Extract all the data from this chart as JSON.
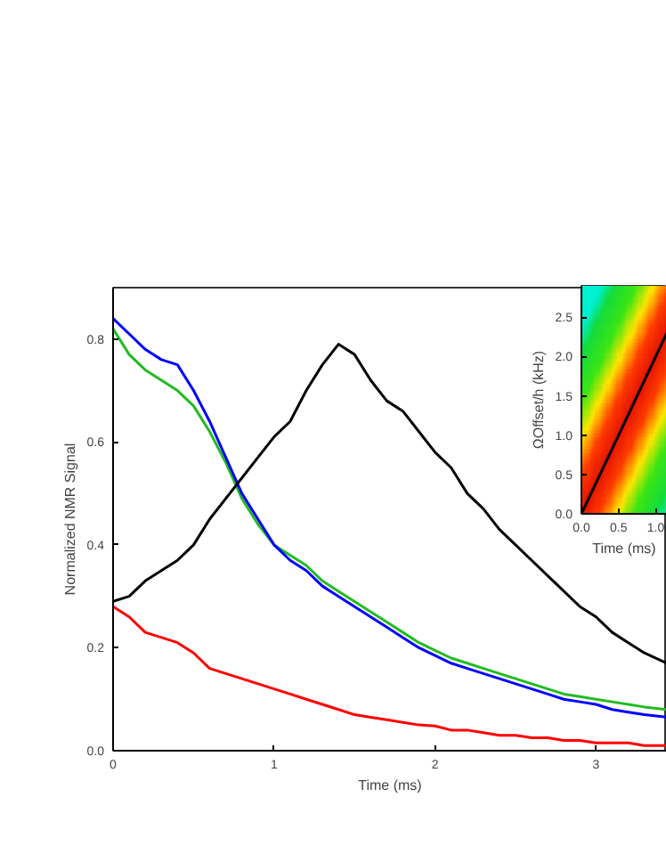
{
  "chart_data": [
    {
      "type": "line",
      "xlabel": "Time (ms)",
      "ylabel": "Normalized NMR Signal",
      "xlim": [
        0,
        3.44
      ],
      "ylim": [
        0,
        0.9
      ],
      "xticks": [
        0,
        1,
        2,
        3
      ],
      "yticks": [
        {
          "value": 0,
          "label": "0.0"
        },
        {
          "value": 0.2,
          "label": "0.2"
        },
        {
          "value": 0.4,
          "label": "0.4"
        },
        {
          "value": 0.6,
          "label": "0.6"
        },
        {
          "value": 0.8,
          "label": "0.8"
        }
      ],
      "grid": false,
      "x": [
        0,
        0.1,
        0.2,
        0.3,
        0.4,
        0.5,
        0.6,
        0.7,
        0.8,
        0.9,
        1.0,
        1.1,
        1.2,
        1.3,
        1.4,
        1.5,
        1.6,
        1.7,
        1.8,
        1.9,
        2.0,
        2.1,
        2.2,
        2.3,
        2.4,
        2.5,
        2.6,
        2.7,
        2.8,
        2.9,
        3.0,
        3.1,
        3.2,
        3.3,
        3.44
      ],
      "series": [
        {
          "color": "#22bb22",
          "values": [
            0.82,
            0.77,
            0.74,
            0.72,
            0.7,
            0.67,
            0.62,
            0.56,
            0.49,
            0.44,
            0.4,
            0.38,
            0.36,
            0.33,
            0.31,
            0.29,
            0.27,
            0.25,
            0.23,
            0.21,
            0.195,
            0.18,
            0.17,
            0.16,
            0.15,
            0.14,
            0.13,
            0.12,
            0.11,
            0.105,
            0.1,
            0.095,
            0.09,
            0.085,
            0.08
          ]
        },
        {
          "color": "#0000ff",
          "values": [
            0.84,
            0.81,
            0.78,
            0.76,
            0.75,
            0.7,
            0.64,
            0.57,
            0.5,
            0.45,
            0.4,
            0.37,
            0.35,
            0.32,
            0.3,
            0.28,
            0.26,
            0.24,
            0.22,
            0.2,
            0.185,
            0.17,
            0.16,
            0.15,
            0.14,
            0.13,
            0.12,
            0.11,
            0.1,
            0.095,
            0.09,
            0.08,
            0.075,
            0.07,
            0.065
          ]
        },
        {
          "color": "#000000",
          "values": [
            0.29,
            0.3,
            0.33,
            0.35,
            0.37,
            0.4,
            0.45,
            0.49,
            0.53,
            0.57,
            0.61,
            0.64,
            0.7,
            0.75,
            0.79,
            0.77,
            0.72,
            0.68,
            0.66,
            0.62,
            0.58,
            0.55,
            0.5,
            0.47,
            0.43,
            0.4,
            0.37,
            0.34,
            0.31,
            0.28,
            0.26,
            0.23,
            0.21,
            0.19,
            0.17
          ]
        },
        {
          "color": "#ff0000",
          "values": [
            0.28,
            0.26,
            0.23,
            0.22,
            0.21,
            0.19,
            0.16,
            0.15,
            0.14,
            0.13,
            0.12,
            0.11,
            0.1,
            0.09,
            0.08,
            0.07,
            0.065,
            0.06,
            0.055,
            0.05,
            0.048,
            0.04,
            0.04,
            0.035,
            0.03,
            0.03,
            0.025,
            0.025,
            0.02,
            0.02,
            0.015,
            0.015,
            0.015,
            0.01,
            0.01
          ]
        }
      ]
    },
    {
      "type": "line",
      "xlabel": "Time (ms)",
      "ylabel": "ΩOffset/h (kHz)",
      "xlim": [
        0,
        1.15
      ],
      "ylim": [
        0,
        2.9
      ],
      "xticks": [
        {
          "value": 0,
          "label": "0.0"
        },
        {
          "value": 0.5,
          "label": "0.5"
        },
        {
          "value": 1.0,
          "label": "1.0"
        }
      ],
      "yticks": [
        {
          "value": 0,
          "label": "0.0"
        },
        {
          "value": 0.5,
          "label": "0.5"
        },
        {
          "value": 1.0,
          "label": "1.0"
        },
        {
          "value": 1.5,
          "label": "1.5"
        },
        {
          "value": 2.0,
          "label": "2.0"
        },
        {
          "value": 2.5,
          "label": "2.5"
        }
      ],
      "grid": false,
      "series": [
        {
          "color": "#000000",
          "x": [
            0,
            1.15
          ],
          "values": [
            0,
            2.3
          ]
        }
      ]
    }
  ]
}
